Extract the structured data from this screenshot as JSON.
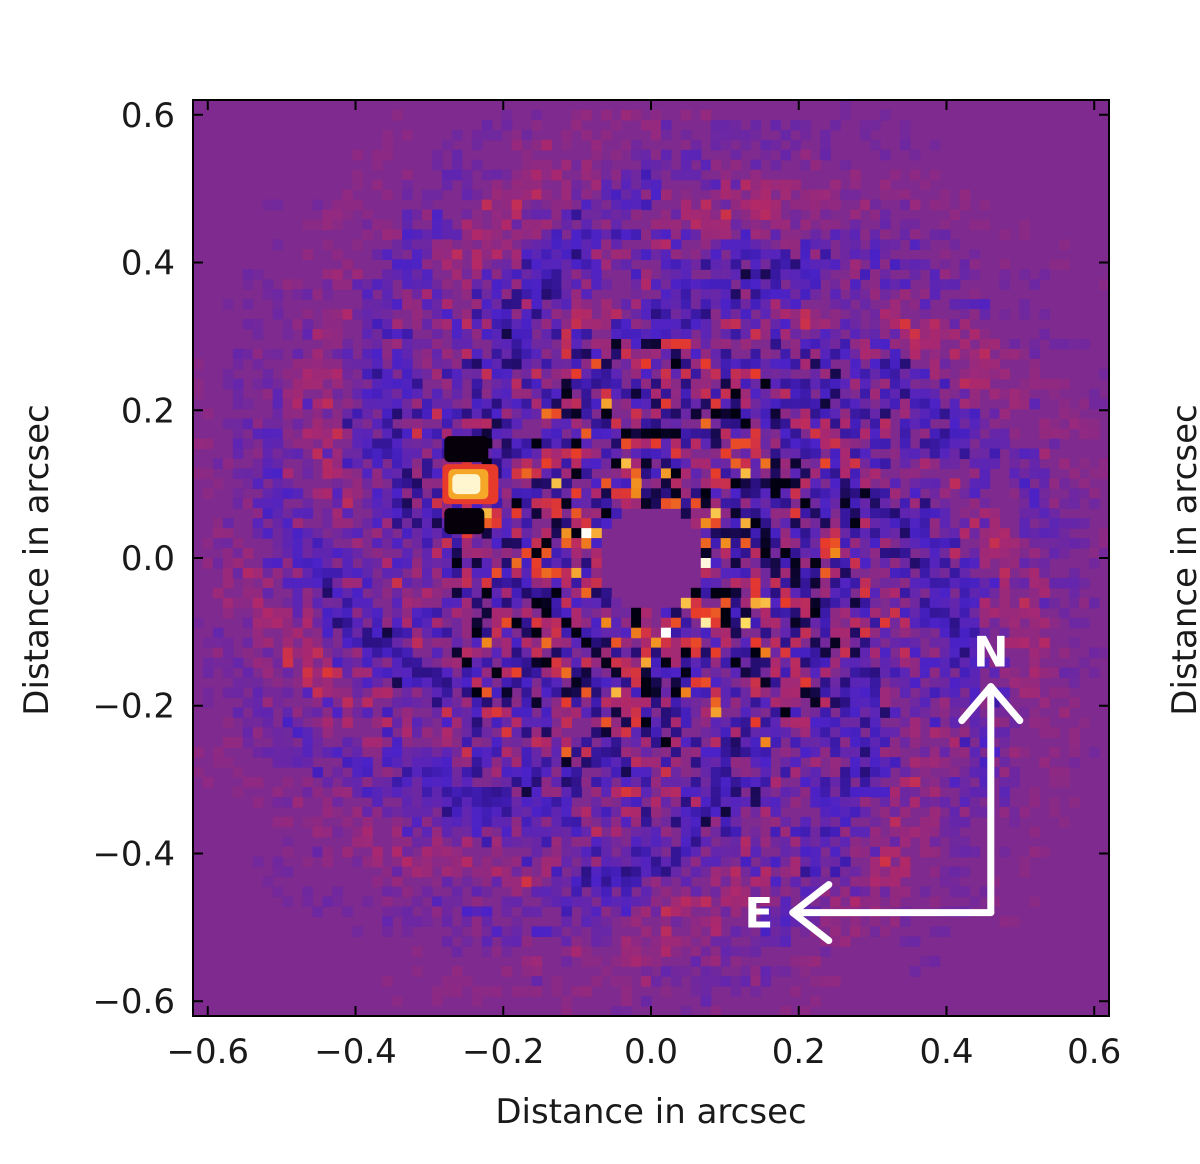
{
  "chart_data": {
    "type": "heatmap",
    "title": "",
    "xlabel": "Distance in arcsec",
    "ylabel": "Distance in arcsec",
    "secondary_ylabel": "Distance in arcsec",
    "xlim": [
      -0.62,
      0.62
    ],
    "ylim": [
      -0.62,
      0.62
    ],
    "xticks": [
      -0.6,
      -0.4,
      -0.2,
      0.0,
      0.2,
      0.4,
      0.6
    ],
    "yticks": [
      -0.6,
      -0.4,
      -0.2,
      0.0,
      0.2,
      0.4,
      0.6
    ],
    "xtick_labels": [
      "−0.6",
      "−0.4",
      "−0.2",
      "0.0",
      "0.2",
      "0.4",
      "0.6"
    ],
    "ytick_labels": [
      "0.6",
      "0.4",
      "0.2",
      "0.0",
      "−0.2",
      "−0.4",
      "−0.6"
    ],
    "background_color": "#7f2a8e",
    "mask_radius_arcsec": 0.07,
    "speckle_outer_radius_arcsec": 0.5,
    "companion": {
      "x": -0.25,
      "y": 0.1
    },
    "colormap": [
      "#000010",
      "#2a1080",
      "#4a22c8",
      "#7f2a8e",
      "#b0286a",
      "#e83a2a",
      "#f08a1c",
      "#ffe060",
      "#ffffff"
    ],
    "compass": {
      "north_label": "N",
      "east_label": "E",
      "origin": {
        "x": 0.46,
        "y": -0.48
      }
    }
  }
}
